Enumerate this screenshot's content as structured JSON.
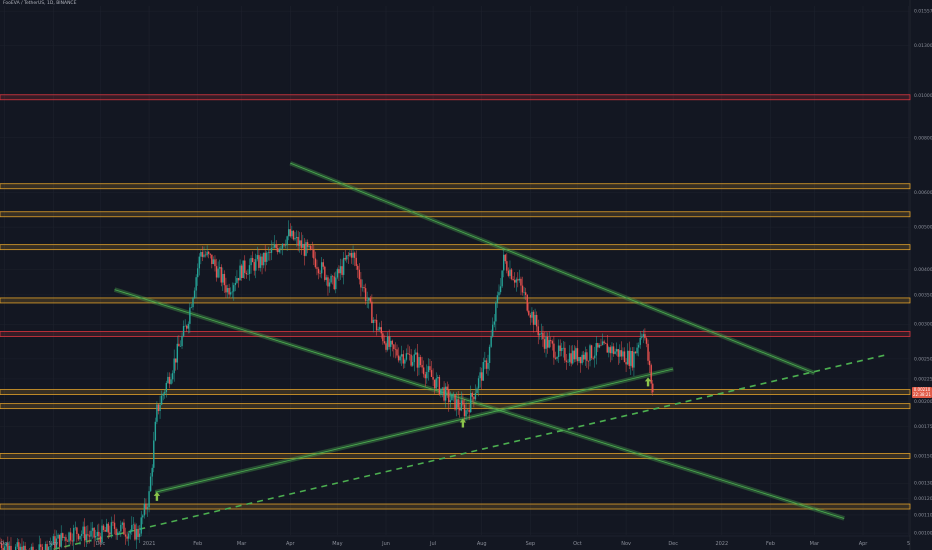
{
  "header": {
    "title": "FooEVA / TetherUS, 1D, BINANCE"
  },
  "colors": {
    "background": "#131722",
    "grid": "#1e222d",
    "up": "#26a69a",
    "down": "#ef5350",
    "support_zone": "#e0a02a",
    "red_zone": "#d9363e",
    "trend_channel": "#4caf50",
    "arrow": "#8bc34a",
    "price_badge": "#e05a47"
  },
  "icons": {
    "signal_arrow": "up-arrow-icon"
  },
  "chart_data": {
    "type": "candlestick",
    "title": "",
    "symbol": "FooEVA / TetherUS, 1D, BINANCE",
    "xlabel": "",
    "ylabel": "",
    "y_scale": "log",
    "ylim": [
      0.00099,
      0.016
    ],
    "x_axis_labels": [
      "Oct",
      "Nov",
      "Dec",
      "2021",
      "Feb",
      "Mar",
      "Apr",
      "May",
      "Jun",
      "Jul",
      "Aug",
      "Sep",
      "Oct",
      "Nov",
      "Dec",
      "2022",
      "Feb",
      "Mar",
      "Apr",
      "5"
    ],
    "y_axis_labels": [
      "0.01557",
      "0.01300",
      "0.01000",
      "0.00800",
      "0.00600",
      "0.00500",
      "0.00400",
      "0.00350",
      "0.00300",
      "0.00250",
      "0.00225",
      "0.00200",
      "0.00175",
      "0.00150",
      "0.00130",
      "0.00120",
      "0.00110",
      "0.00100"
    ],
    "last_price": "0.00210",
    "last_price_time": "22:38:21",
    "horizontal_levels": [
      {
        "kind": "red",
        "price": 0.0099
      },
      {
        "kind": "support",
        "price": 0.0062
      },
      {
        "kind": "support",
        "price": 0.00535
      },
      {
        "kind": "support",
        "price": 0.0045
      },
      {
        "kind": "support",
        "price": 0.0034
      },
      {
        "kind": "red",
        "price": 0.00285
      },
      {
        "kind": "support",
        "price": 0.0021
      },
      {
        "kind": "support",
        "price": 0.00195
      },
      {
        "kind": "support",
        "price": 0.0015
      },
      {
        "kind": "support",
        "price": 0.00115
      }
    ],
    "trend_lines": [
      {
        "kind": "channel",
        "from": [
          "2021-04-01",
          0.007
        ],
        "to": [
          "2022-03-01",
          0.00232
        ]
      },
      {
        "kind": "channel",
        "from": [
          "2020-12-10",
          0.0036
        ],
        "to": [
          "2022-03-20",
          0.00108
        ]
      },
      {
        "kind": "channel",
        "from": [
          "2021-01-05",
          0.00124
        ],
        "to": [
          "2021-12-01",
          0.00237
        ]
      },
      {
        "kind": "dashed",
        "from": [
          "2020-09-28",
          0.00086
        ],
        "to": [
          "2022-04-15",
          0.00255
        ]
      }
    ],
    "signal_arrows": [
      {
        "date": "2021-01-06",
        "price": 0.00121
      },
      {
        "date": "2021-07-20",
        "price": 0.00178
      },
      {
        "date": "2021-11-15",
        "price": 0.00221
      }
    ],
    "price_path": [
      [
        "2020-09-28",
        0.00095
      ],
      [
        "2020-10-10",
        0.00091
      ],
      [
        "2020-10-20",
        0.00089
      ],
      [
        "2020-11-01",
        0.00095
      ],
      [
        "2020-11-15",
        0.00101
      ],
      [
        "2020-11-28",
        0.00098
      ],
      [
        "2020-12-10",
        0.00103
      ],
      [
        "2020-12-25",
        0.001
      ],
      [
        "2021-01-01",
        0.00122
      ],
      [
        "2021-01-06",
        0.0019
      ],
      [
        "2021-01-15",
        0.00235
      ],
      [
        "2021-01-25",
        0.003
      ],
      [
        "2021-02-03",
        0.0044
      ],
      [
        "2021-02-10",
        0.0042
      ],
      [
        "2021-02-20",
        0.0036
      ],
      [
        "2021-03-01",
        0.004
      ],
      [
        "2021-03-15",
        0.0042
      ],
      [
        "2021-03-31",
        0.0048
      ],
      [
        "2021-04-15",
        0.0043
      ],
      [
        "2021-04-28",
        0.0037
      ],
      [
        "2021-05-10",
        0.0044
      ],
      [
        "2021-05-25",
        0.003
      ],
      [
        "2021-06-05",
        0.0026
      ],
      [
        "2021-06-20",
        0.0025
      ],
      [
        "2021-07-01",
        0.00225
      ],
      [
        "2021-07-10",
        0.00205
      ],
      [
        "2021-07-22",
        0.0019
      ],
      [
        "2021-08-05",
        0.0025
      ],
      [
        "2021-08-15",
        0.0042
      ],
      [
        "2021-08-25",
        0.0037
      ],
      [
        "2021-09-08",
        0.0028
      ],
      [
        "2021-09-20",
        0.00255
      ],
      [
        "2021-10-05",
        0.00255
      ],
      [
        "2021-10-20",
        0.00265
      ],
      [
        "2021-11-05",
        0.0025
      ],
      [
        "2021-11-12",
        0.00295
      ],
      [
        "2021-11-18",
        0.0021
      ]
    ]
  }
}
